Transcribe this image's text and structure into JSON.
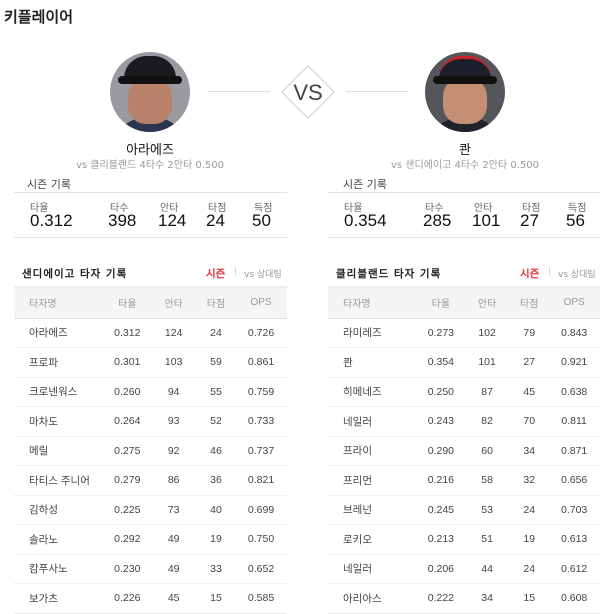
{
  "title": "키플레이어",
  "vs_label": "VS",
  "players": [
    {
      "name": "아라에즈",
      "matchup": "vs 클리블랜드  4타수 2안타 0.500",
      "season_label": "시즌 기록",
      "stats": [
        {
          "label": "타율",
          "value": "0.312"
        },
        {
          "label": "타수",
          "value": "398"
        },
        {
          "label": "안타",
          "value": "124"
        },
        {
          "label": "타점",
          "value": "24"
        },
        {
          "label": "득점",
          "value": "50"
        }
      ]
    },
    {
      "name": "콴",
      "matchup": "vs 샌디에이고  4타수 2안타 0.500",
      "season_label": "시즌 기록",
      "stats": [
        {
          "label": "타율",
          "value": "0.354"
        },
        {
          "label": "타수",
          "value": "285"
        },
        {
          "label": "안타",
          "value": "101"
        },
        {
          "label": "타점",
          "value": "27"
        },
        {
          "label": "득점",
          "value": "56"
        }
      ]
    }
  ],
  "tables": [
    {
      "title": "샌디에이고 타자 기록",
      "tab_season": "시즌",
      "tab_sep": "|",
      "tab_vs": "vs 상대팀",
      "headers": [
        "타자명",
        "타율",
        "안타",
        "타점",
        "OPS"
      ],
      "rows": [
        [
          "아라에즈",
          "0.312",
          "124",
          "24",
          "0.726"
        ],
        [
          "프로파",
          "0.301",
          "103",
          "59",
          "0.861"
        ],
        [
          "크로넨워스",
          "0.260",
          "94",
          "55",
          "0.759"
        ],
        [
          "마차도",
          "0.264",
          "93",
          "52",
          "0.733"
        ],
        [
          "메릴",
          "0.275",
          "92",
          "46",
          "0.737"
        ],
        [
          "타티스 주니어",
          "0.279",
          "86",
          "36",
          "0.821"
        ],
        [
          "김하성",
          "0.225",
          "73",
          "40",
          "0.699"
        ],
        [
          "솔라노",
          "0.292",
          "49",
          "19",
          "0.750"
        ],
        [
          "캄푸사노",
          "0.230",
          "49",
          "33",
          "0.652"
        ],
        [
          "보가츠",
          "0.226",
          "45",
          "15",
          "0.585"
        ]
      ]
    },
    {
      "title": "클리블랜드 타자 기록",
      "tab_season": "시즌",
      "tab_sep": "|",
      "tab_vs": "vs 상대팀",
      "headers": [
        "타자명",
        "타율",
        "안타",
        "타점",
        "OPS"
      ],
      "rows": [
        [
          "라미레즈",
          "0.273",
          "102",
          "79",
          "0.843"
        ],
        [
          "콴",
          "0.354",
          "101",
          "27",
          "0.921"
        ],
        [
          "히메네즈",
          "0.250",
          "87",
          "45",
          "0.638"
        ],
        [
          "네일러",
          "0.243",
          "82",
          "70",
          "0.811"
        ],
        [
          "프라이",
          "0.290",
          "60",
          "34",
          "0.871"
        ],
        [
          "프리먼",
          "0.216",
          "58",
          "32",
          "0.656"
        ],
        [
          "브레넌",
          "0.245",
          "53",
          "24",
          "0.703"
        ],
        [
          "로키오",
          "0.213",
          "51",
          "19",
          "0.613"
        ],
        [
          "네일러",
          "0.206",
          "44",
          "24",
          "0.612"
        ],
        [
          "아리아스",
          "0.222",
          "34",
          "15",
          "0.608"
        ]
      ]
    }
  ],
  "colors": {
    "accent": "#e8323c"
  }
}
